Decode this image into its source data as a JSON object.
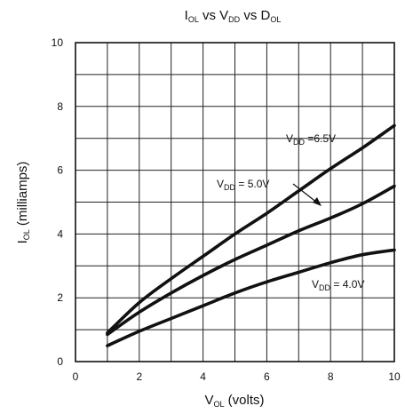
{
  "chart_data": {
    "type": "line",
    "title": {
      "main": "I",
      "sub1": "OL",
      "mid1": " vs V",
      "sub2": "DD",
      "mid2": " vs D",
      "sub3": "OL"
    },
    "xlabel": {
      "main": "V",
      "sub": "OL",
      "rest": " (volts)"
    },
    "ylabel": {
      "main": "I",
      "sub": "OL",
      "rest": " (milliamps)"
    },
    "xlim": [
      0,
      10
    ],
    "ylim": [
      0,
      10
    ],
    "xticks": [
      "0",
      "2",
      "4",
      "6",
      "8",
      "10"
    ],
    "yticks": [
      "0",
      "2",
      "4",
      "6",
      "8",
      "10"
    ],
    "grid": true,
    "series": [
      {
        "label": {
          "main": "V",
          "sub": "DD",
          "rest": " =6.5V"
        },
        "x": [
          1,
          2,
          3,
          4,
          5,
          6,
          7,
          8,
          9,
          10
        ],
        "y": [
          0.9,
          1.85,
          2.6,
          3.3,
          4.0,
          4.65,
          5.35,
          6.05,
          6.7,
          7.4
        ]
      },
      {
        "label": {
          "main": "V",
          "sub": "DD",
          "rest": " = 5.0V"
        },
        "x": [
          1,
          2,
          3,
          4,
          5,
          6,
          7,
          8,
          9,
          10
        ],
        "y": [
          0.85,
          1.55,
          2.15,
          2.7,
          3.2,
          3.65,
          4.1,
          4.5,
          4.95,
          5.5
        ]
      },
      {
        "label": {
          "main": "V",
          "sub": "DD",
          "rest": " = 4.0V"
        },
        "x": [
          1,
          2,
          3,
          4,
          5,
          6,
          7,
          8,
          9,
          10
        ],
        "y": [
          0.5,
          0.95,
          1.35,
          1.75,
          2.15,
          2.5,
          2.8,
          3.1,
          3.35,
          3.5
        ]
      }
    ]
  }
}
